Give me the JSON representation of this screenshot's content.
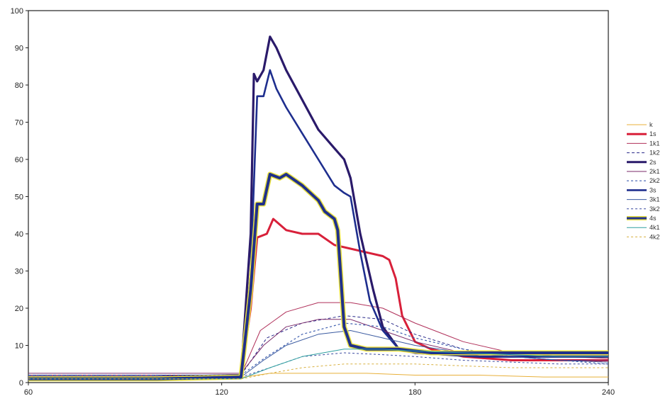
{
  "chart_data": {
    "type": "line",
    "title": "",
    "xlabel": "",
    "ylabel": "",
    "xlim": [
      60,
      240
    ],
    "ylim": [
      0,
      100
    ],
    "xticks": [
      "60",
      "120",
      "180",
      "240"
    ],
    "yticks": [
      "0",
      "10",
      "20",
      "30",
      "40",
      "50",
      "60",
      "70",
      "80",
      "90",
      "100"
    ],
    "legend_position": "right",
    "grid": false,
    "series": [
      {
        "name": "k",
        "color": "#e8b03a",
        "width": 1,
        "dash": "none",
        "x": [
          60,
          100,
          127,
          135,
          150,
          165,
          180,
          200,
          220,
          240
        ],
        "y": [
          1.5,
          1.5,
          1.5,
          2.5,
          2.5,
          2.5,
          2.0,
          2.0,
          1.5,
          1.5
        ]
      },
      {
        "name": "1s",
        "color": "#d8203a",
        "width": 3,
        "dash": "none",
        "x": [
          60,
          100,
          126,
          129,
          131,
          134,
          136,
          140,
          145,
          150,
          155,
          160,
          165,
          170,
          172,
          174,
          176,
          180,
          185,
          195,
          210,
          225,
          240
        ],
        "y": [
          1.5,
          1.5,
          2,
          20,
          39,
          40,
          44,
          41,
          40,
          40,
          37,
          36,
          35,
          34,
          33,
          28,
          18,
          11,
          9,
          7,
          6,
          6,
          6
        ]
      },
      {
        "name": "1k1",
        "color": "#b0305a",
        "width": 1,
        "dash": "none",
        "x": [
          60,
          100,
          126,
          132,
          140,
          150,
          160,
          170,
          180,
          195,
          210,
          225,
          240
        ],
        "y": [
          2,
          2,
          2,
          14,
          19,
          21.5,
          21.5,
          20,
          16,
          11,
          8,
          7,
          6.5
        ]
      },
      {
        "name": "1k2",
        "color": "#2a2a8a",
        "width": 1,
        "dash": "4,3",
        "x": [
          60,
          100,
          126,
          134,
          145,
          158,
          170,
          180,
          195,
          210,
          225,
          240
        ],
        "y": [
          2,
          2,
          2,
          12,
          16,
          18,
          17,
          13,
          9,
          7,
          6,
          5.5
        ]
      },
      {
        "name": "2s",
        "color": "#2a1a6a",
        "width": 3.2,
        "dash": "none",
        "x": [
          60,
          100,
          126,
          129,
          130,
          131,
          133,
          135,
          137,
          140,
          145,
          150,
          155,
          158,
          160,
          163,
          167,
          170,
          175,
          180,
          200,
          220,
          240
        ],
        "y": [
          1.5,
          1.5,
          2,
          40,
          83,
          81,
          84,
          93,
          90,
          84,
          76,
          68,
          63,
          60,
          55,
          40,
          25,
          15,
          9,
          8,
          7,
          7,
          7
        ]
      },
      {
        "name": "2k1",
        "color": "#7a2a6a",
        "width": 1,
        "dash": "none",
        "x": [
          60,
          100,
          126,
          133,
          140,
          150,
          160,
          170,
          180,
          195,
          210,
          225,
          240
        ],
        "y": [
          2.5,
          2.5,
          2.5,
          10,
          15,
          17,
          17,
          14,
          11,
          8,
          7,
          6,
          6
        ]
      },
      {
        "name": "2k2",
        "color": "#4060b0",
        "width": 1.2,
        "dash": "3,3",
        "x": [
          60,
          100,
          126,
          134,
          145,
          158,
          170,
          180,
          195,
          210,
          225,
          240
        ],
        "y": [
          2,
          2,
          2,
          7,
          13,
          16,
          15,
          12,
          9,
          7,
          6,
          5
        ]
      },
      {
        "name": "3s",
        "color": "#1e2e8e",
        "width": 2.6,
        "dash": "none",
        "x": [
          60,
          100,
          126,
          129,
          131,
          133,
          135,
          137,
          140,
          145,
          150,
          155,
          158,
          160,
          163,
          166,
          170,
          175,
          180,
          200,
          220,
          240
        ],
        "y": [
          1,
          1,
          2,
          30,
          77,
          77,
          84,
          79,
          74,
          67,
          60,
          53,
          51,
          50,
          35,
          22,
          14,
          9,
          8,
          7,
          7,
          7
        ]
      },
      {
        "name": "3k1",
        "color": "#3a5aa0",
        "width": 1,
        "dash": "none",
        "x": [
          60,
          100,
          126,
          133,
          140,
          150,
          160,
          170,
          180,
          195,
          210,
          225,
          240
        ],
        "y": [
          1.5,
          1.5,
          1.5,
          6,
          10,
          13,
          14,
          12,
          10,
          8,
          7,
          6,
          5.5
        ]
      },
      {
        "name": "3k2",
        "color": "#3a4aa0",
        "width": 1,
        "dash": "3,3",
        "x": [
          60,
          100,
          126,
          135,
          145,
          158,
          170,
          180,
          195,
          210,
          225,
          240
        ],
        "y": [
          1.5,
          1.5,
          1.5,
          4,
          7,
          8,
          7.5,
          7,
          6,
          5.5,
          5,
          5
        ]
      },
      {
        "name": "4s",
        "color": "#20308a",
        "width": 4,
        "dash": "none",
        "glow": "#e8e040",
        "x": [
          60,
          100,
          126,
          129,
          131,
          133,
          135,
          138,
          140,
          145,
          150,
          152,
          155,
          156,
          158,
          160,
          165,
          175,
          185,
          200,
          220,
          240
        ],
        "y": [
          1,
          1,
          1.5,
          25,
          48,
          48,
          56,
          55,
          56,
          53,
          49,
          46,
          44,
          41,
          15,
          10,
          9,
          9,
          8,
          8,
          8,
          8
        ]
      },
      {
        "name": "4k1",
        "color": "#30a0a0",
        "width": 1,
        "dash": "none",
        "x": [
          60,
          100,
          126,
          135,
          145,
          158,
          170,
          180,
          195,
          210,
          225,
          240
        ],
        "y": [
          1,
          1,
          1,
          4,
          7,
          9,
          9,
          8.5,
          8,
          7.5,
          7,
          7
        ]
      },
      {
        "name": "4k2",
        "color": "#d8b040",
        "width": 1,
        "dash": "3,3",
        "x": [
          60,
          100,
          126,
          135,
          145,
          158,
          170,
          180,
          195,
          210,
          225,
          240
        ],
        "y": [
          1,
          1,
          1,
          2.5,
          4,
          5,
          5,
          5,
          4.5,
          4,
          4,
          4
        ]
      }
    ]
  }
}
